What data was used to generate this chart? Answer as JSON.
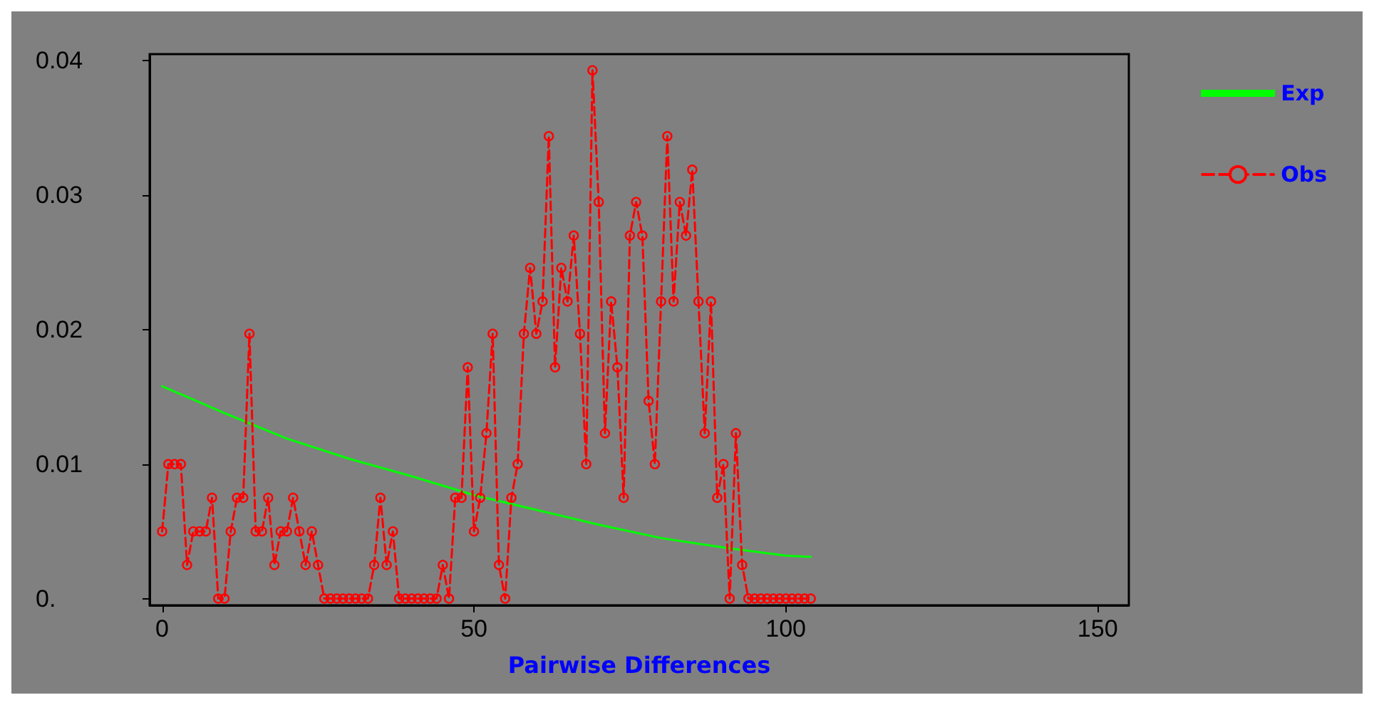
{
  "chart_data": {
    "type": "line",
    "xlabel": "Pairwise Differences",
    "xlim": [
      -2,
      155
    ],
    "xticks": [
      0,
      50,
      100,
      150
    ],
    "ylim": [
      -0.0005,
      0.0405
    ],
    "yticks": [
      {
        "value": 0,
        "label": "0."
      },
      0.01,
      0.02,
      0.03,
      0.04
    ],
    "grid": false,
    "legend": "right",
    "series": [
      {
        "name": "Exp",
        "color": "#00ff00",
        "marker": "none",
        "line_style": "solid",
        "x": [
          0,
          10,
          20,
          30,
          40,
          50,
          60,
          70,
          80,
          90,
          100,
          104
        ],
        "values": [
          0.0158,
          0.0138,
          0.0119,
          0.0104,
          0.0091,
          0.0077,
          0.0066,
          0.0055,
          0.0045,
          0.0038,
          0.0032,
          0.0031
        ]
      },
      {
        "name": "Obs",
        "color": "#ff0000",
        "marker": "circle",
        "line_style": "dashed",
        "x": [
          0,
          1,
          2,
          3,
          4,
          5,
          6,
          7,
          8,
          9,
          10,
          11,
          12,
          13,
          14,
          15,
          16,
          17,
          18,
          19,
          20,
          21,
          22,
          23,
          24,
          25,
          26,
          27,
          28,
          29,
          30,
          31,
          32,
          33,
          34,
          35,
          36,
          37,
          38,
          39,
          40,
          41,
          42,
          43,
          44,
          45,
          46,
          47,
          48,
          49,
          50,
          51,
          52,
          53,
          54,
          55,
          56,
          57,
          58,
          59,
          60,
          61,
          62,
          63,
          64,
          65,
          66,
          67,
          68,
          69,
          70,
          71,
          72,
          73,
          74,
          75,
          76,
          77,
          78,
          79,
          80,
          81,
          82,
          83,
          84,
          85,
          86,
          87,
          88,
          89,
          90,
          91,
          92,
          93,
          94,
          95,
          96,
          97,
          98,
          99,
          100,
          101,
          102,
          103,
          104
        ],
        "values": [
          0.005,
          0.01,
          0.01,
          0.01,
          0.0025,
          0.005,
          0.005,
          0.005,
          0.0075,
          0,
          0,
          0.005,
          0.0075,
          0.0075,
          0.0197,
          0.005,
          0.005,
          0.0075,
          0.0025,
          0.005,
          0.005,
          0.0075,
          0.005,
          0.0025,
          0.005,
          0.0025,
          0,
          0,
          0,
          0,
          0,
          0,
          0,
          0,
          0.0025,
          0.0075,
          0.0025,
          0.005,
          0,
          0,
          0,
          0,
          0,
          0,
          0,
          0.0025,
          0,
          0.0075,
          0.0075,
          0.0172,
          0.005,
          0.0075,
          0.0123,
          0.0197,
          0.0025,
          0,
          0.0075,
          0.01,
          0.0197,
          0.0246,
          0.0197,
          0.0221,
          0.0344,
          0.0172,
          0.0246,
          0.0221,
          0.027,
          0.0197,
          0.01,
          0.0393,
          0.0295,
          0.0123,
          0.0221,
          0.0172,
          0.0075,
          0.027,
          0.0295,
          0.027,
          0.0147,
          0.01,
          0.0221,
          0.0344,
          0.0221,
          0.0295,
          0.027,
          0.0319,
          0.0221,
          0.0123,
          0.0221,
          0.0075,
          0.01,
          0,
          0.0123,
          0.0025,
          0,
          0,
          0,
          0,
          0,
          0,
          0,
          0,
          0,
          0,
          0
        ]
      }
    ]
  }
}
